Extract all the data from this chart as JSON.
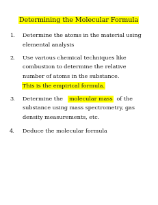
{
  "title": "Determining the Molecular Formula",
  "title_highlight": "#FFFF00",
  "background_color": "#FFFFFF",
  "text_color": "#1a1a1a",
  "title_fontsize": 6.8,
  "body_fontsize": 5.8,
  "font_family": "DejaVu Serif",
  "items": [
    {
      "number": "1.",
      "lines": [
        {
          "type": "plain",
          "text": "Determine the atoms in the material using"
        },
        {
          "type": "plain",
          "text": "elemental analysis"
        }
      ]
    },
    {
      "number": "2.",
      "lines": [
        {
          "type": "plain",
          "text": "Use various chemical techniques like"
        },
        {
          "type": "plain",
          "text": "combustion to determine the relative"
        },
        {
          "type": "plain",
          "text": "number of atoms in the substance."
        },
        {
          "type": "highlighted",
          "text": "This is the empirical formula.",
          "highlight": "#FFFF00"
        }
      ]
    },
    {
      "number": "3.",
      "lines": [
        {
          "type": "mixed",
          "parts": [
            {
              "text": "Determine the ",
              "highlight": null
            },
            {
              "text": "molecular mass",
              "highlight": "#FFFF00"
            },
            {
              "text": " of the",
              "highlight": null
            }
          ]
        },
        {
          "type": "plain",
          "text": "substance using mass spectrometry, gas"
        },
        {
          "type": "plain",
          "text": "density measurements, etc."
        }
      ]
    },
    {
      "number": "4.",
      "lines": [
        {
          "type": "plain",
          "text": "Deduce the molecular formula"
        }
      ]
    }
  ]
}
